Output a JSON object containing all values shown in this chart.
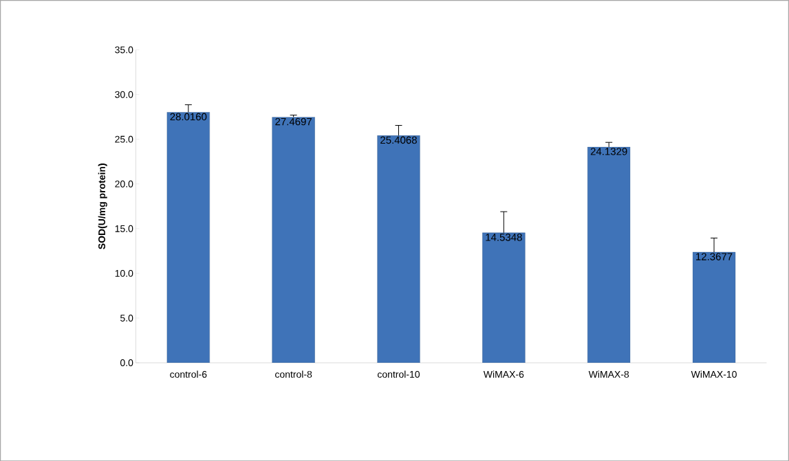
{
  "chart_data": {
    "type": "bar",
    "ylabel": "SOD(U/mg protein)",
    "categories": [
      "control-6",
      "control-8",
      "control-10",
      "WiMAX-6",
      "WiMAX-8",
      "WiMAX-10"
    ],
    "values": [
      28.016,
      27.4697,
      25.4068,
      14.5348,
      24.1329,
      12.3677
    ],
    "value_labels": [
      "28.0160",
      "27.4697",
      "25.4068",
      "14.5348",
      "24.1329",
      "12.3677"
    ],
    "errors": [
      [
        28.016,
        28.86
      ],
      [
        27.4697,
        27.7
      ],
      [
        25.4068,
        26.55
      ],
      [
        14.5348,
        16.9
      ],
      [
        24.1329,
        24.65
      ],
      [
        12.3677,
        13.95
      ]
    ],
    "color": "#3f73b8",
    "ylim": [
      0,
      35
    ],
    "yticks": [
      {
        "value": 0,
        "label": "0.0"
      },
      {
        "value": 5,
        "label": "5.0"
      },
      {
        "value": 10,
        "label": "10.0"
      },
      {
        "value": 15,
        "label": "15.0"
      },
      {
        "value": 20,
        "label": "20.0"
      },
      {
        "value": 25,
        "label": "25.0"
      },
      {
        "value": 30,
        "label": "30.0"
      },
      {
        "value": 35,
        "label": "35.0"
      }
    ],
    "grid": false
  }
}
